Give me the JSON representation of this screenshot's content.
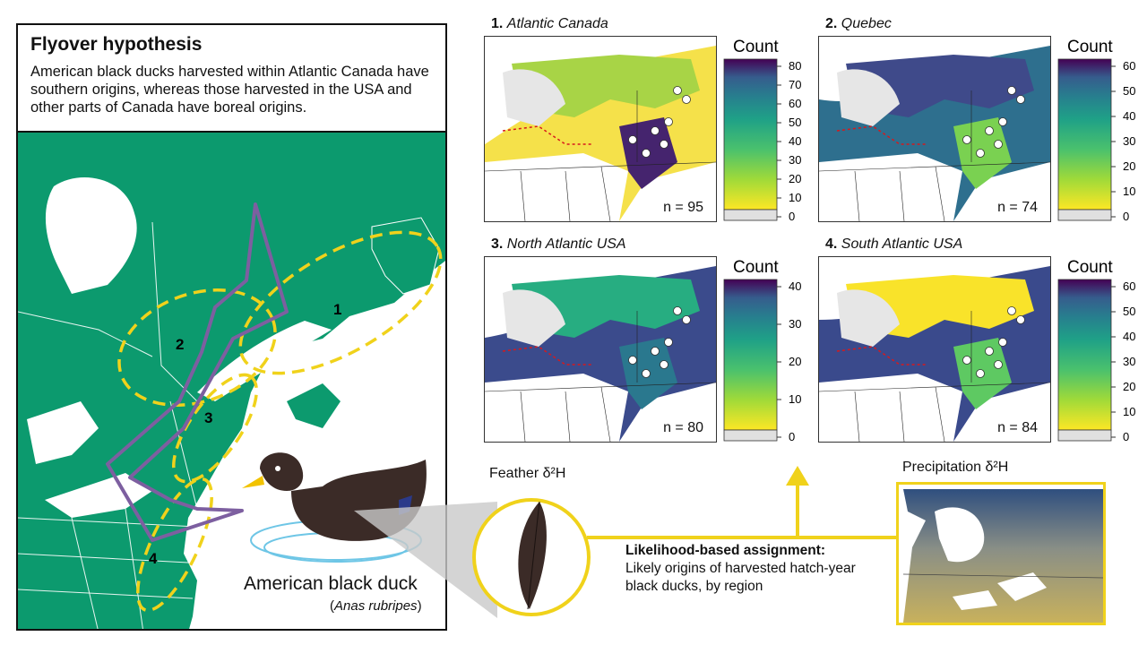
{
  "hypothesis": {
    "title": "Flyover hypothesis",
    "text": "American black ducks harvested within Atlantic Canada have southern origins, whereas those harvested in the USA and other parts of Canada have boreal origins."
  },
  "regions": [
    "1",
    "2",
    "3",
    "4"
  ],
  "duck": {
    "name": "American black duck",
    "scientific": "Anas rubripes"
  },
  "feather_label": "Feather δ²H",
  "precip_label": "Precipitation δ²H",
  "assignment": {
    "heading": "Likelihood-based assignment:",
    "text": "Likely origins of harvested hatch-year black ducks, by region"
  },
  "colors": {
    "land": "#0c9a6e",
    "accent": "#f0d21b",
    "flyway": "#7d5fa0",
    "duck_body": "#3b2b27",
    "bill": "#f2c300"
  },
  "panels": [
    {
      "num": "1.",
      "name": "Atlantic Canada",
      "n": "n = 95",
      "count_label": "Count",
      "ticks": [
        "80",
        "70",
        "60",
        "50",
        "40",
        "30",
        "20",
        "10",
        "0"
      ]
    },
    {
      "num": "2.",
      "name": "Quebec",
      "n": "n = 74",
      "count_label": "Count",
      "ticks": [
        "60",
        "50",
        "40",
        "30",
        "20",
        "10",
        "0"
      ]
    },
    {
      "num": "3.",
      "name": "North Atlantic USA",
      "n": "n = 80",
      "count_label": "Count",
      "ticks": [
        "40",
        "30",
        "20",
        "10",
        "0"
      ]
    },
    {
      "num": "4.",
      "name": "South Atlantic USA",
      "n": "n = 84",
      "count_label": "Count",
      "ticks": [
        "60",
        "50",
        "40",
        "30",
        "20",
        "10",
        "0"
      ]
    }
  ]
}
